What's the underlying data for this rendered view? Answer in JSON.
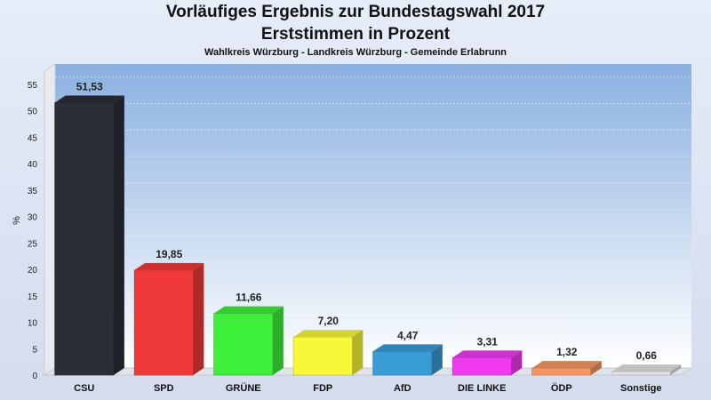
{
  "header": {
    "title": "Vorläufiges Ergebnis zur Bundestagswahl 2017",
    "subtitle": "Erststimmen in Prozent",
    "caption": "Wahlkreis Würzburg - Landkreis Würzburg - Gemeinde Erlabrunn"
  },
  "chart_data": {
    "type": "bar",
    "title": "Vorläufiges Ergebnis zur Bundestagswahl 2017",
    "subtitle": "Erststimmen in Prozent",
    "ylabel": "%",
    "xlabel": "",
    "ylim": [
      0,
      55
    ],
    "yticks": [
      "0",
      "5",
      "10",
      "15",
      "20",
      "25",
      "30",
      "35",
      "40",
      "45",
      "50",
      "55"
    ],
    "categories": [
      "CSU",
      "SPD",
      "GRÜNE",
      "FDP",
      "AfD",
      "DIE LINKE",
      "ÖDP",
      "Sonstige"
    ],
    "values": [
      51.53,
      19.85,
      11.66,
      7.2,
      4.47,
      3.31,
      1.32,
      0.66
    ],
    "value_labels": [
      "51,53",
      "19,85",
      "11,66",
      "7,20",
      "4,47",
      "3,31",
      "1,32",
      "0,66"
    ],
    "colors": [
      "#2a2e38",
      "#f03a3a",
      "#3ef03a",
      "#f8f83a",
      "#3a9cd6",
      "#f03af0",
      "#f59660",
      "#e2e2e2"
    ],
    "grid": true,
    "legend": "none"
  }
}
